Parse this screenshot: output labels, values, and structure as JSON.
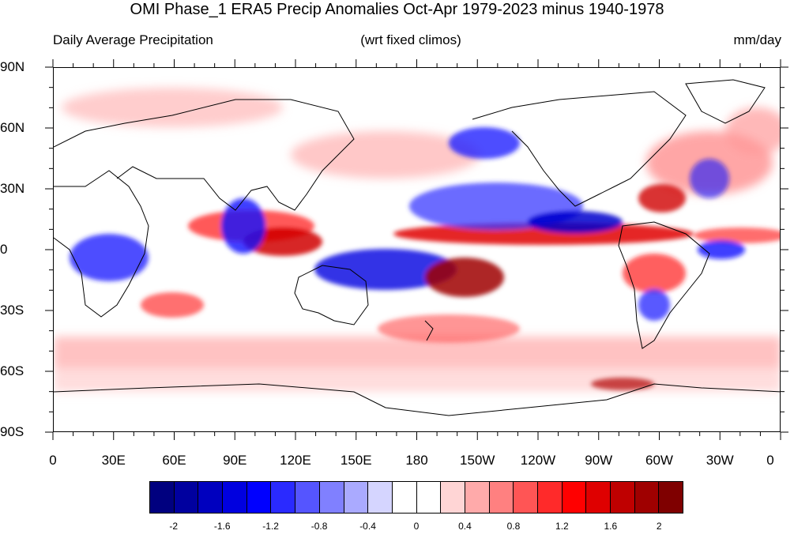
{
  "title": "OMI Phase_1 ERA5 Precip Anomalies Oct-Apr 1979-2023 minus 1940-1978",
  "left_string": "Daily Average Precipitation",
  "center_string": "(wrt fixed climos)",
  "right_string": "mm/day",
  "lat_labels": [
    "90N",
    "60N",
    "30N",
    "0",
    "30S",
    "60S",
    "90S"
  ],
  "lon_labels": [
    "0",
    "30E",
    "60E",
    "90E",
    "120E",
    "150E",
    "180",
    "150W",
    "120W",
    "90W",
    "60W",
    "30W",
    "0"
  ],
  "colorbar": {
    "colors": [
      "#00007f",
      "#00009f",
      "#0000bf",
      "#0000df",
      "#0000ff",
      "#2a2aff",
      "#5555ff",
      "#8080ff",
      "#aaaaff",
      "#d5d5ff",
      "#ffffff",
      "#ffffff",
      "#ffd5d5",
      "#ffaaaa",
      "#ff8080",
      "#ff5555",
      "#ff2a2a",
      "#ff0000",
      "#df0000",
      "#bf0000",
      "#9f0000",
      "#7f0000"
    ],
    "labels": [
      "-2",
      "-1.6",
      "-1.2",
      "-0.8",
      "-0.4",
      "0",
      "0.4",
      "0.8",
      "1.2",
      "1.6",
      "2"
    ]
  },
  "map": {
    "projection": "cylindrical equidistant",
    "lon_range": [
      0,
      360
    ],
    "lat_range": [
      -90,
      90
    ],
    "features": [
      {
        "lon": [
          340,
          250
        ],
        "lat": [
          5,
          -5
        ],
        "kind": "positive"
      },
      {
        "lon": [
          150,
          230
        ],
        "lat": [
          10,
          -5
        ],
        "kind": "negative"
      }
    ]
  }
}
